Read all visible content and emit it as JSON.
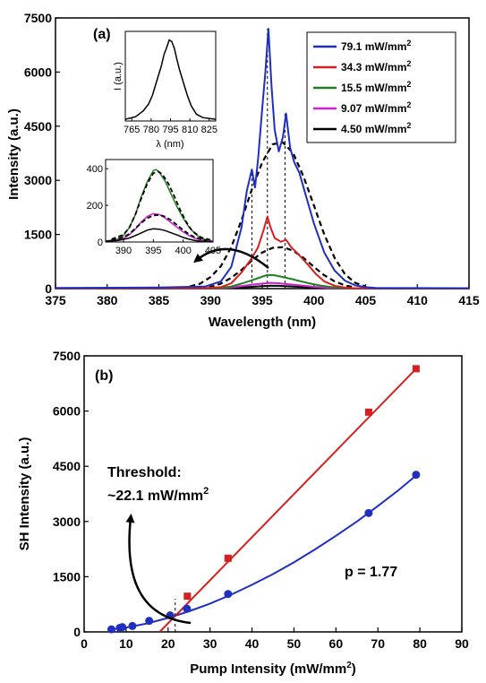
{
  "chart_data": [
    {
      "panel_label": "(a)",
      "type": "line",
      "xlabel": "Wavelength (nm)",
      "ylabel": "Intensity (a.u.)",
      "xlim": [
        375,
        415
      ],
      "ylim": [
        0,
        7500
      ],
      "xticks": [
        375,
        380,
        385,
        390,
        395,
        400,
        405,
        410,
        415
      ],
      "yticks": [
        0,
        1500,
        3000,
        4500,
        6000,
        7500
      ],
      "legend_position": "top-right",
      "legend": [
        {
          "label": "79.1 mW/mm",
          "sup": "2",
          "color": "#1f2fc0"
        },
        {
          "label": "34.3 mW/mm",
          "sup": "2",
          "color": "#d42020"
        },
        {
          "label": "15.5 mW/mm",
          "sup": "2",
          "color": "#208020"
        },
        {
          "label": "9.07 mW/mm",
          "sup": "2",
          "color": "#d020d0"
        },
        {
          "label": "4.50 mW/mm",
          "sup": "2",
          "color": "#000000"
        }
      ],
      "series": [
        {
          "color": "#1f2fc0",
          "x": [
            375,
            385,
            389.5,
            391,
            392,
            393,
            393.5,
            394,
            394.3,
            394.6,
            395,
            395.3,
            395.6,
            395.9,
            396.2,
            396.6,
            397,
            397.3,
            397.7,
            398.1,
            398.6,
            399.2,
            400,
            401,
            402,
            403,
            404,
            405,
            406,
            415
          ],
          "y": [
            20,
            30,
            60,
            200,
            600,
            1700,
            2700,
            3300,
            2800,
            3600,
            5000,
            6000,
            7200,
            5600,
            4400,
            3800,
            4200,
            4850,
            3900,
            3500,
            3200,
            2600,
            1800,
            1000,
            500,
            220,
            90,
            40,
            20,
            10
          ]
        },
        {
          "color": "#d42020",
          "x": [
            375,
            389,
            391,
            392,
            393,
            394,
            394.6,
            395.1,
            395.5,
            395.8,
            396.2,
            396.8,
            397.3,
            397.8,
            398.5,
            399.3,
            400.2,
            401,
            402,
            403,
            404,
            415
          ],
          "y": [
            5,
            10,
            40,
            150,
            450,
            850,
            1150,
            1600,
            2000,
            1700,
            1400,
            1300,
            1350,
            1150,
            950,
            700,
            400,
            200,
            80,
            30,
            10,
            5
          ]
        },
        {
          "color": "#208020",
          "x": [
            375,
            389,
            391,
            392,
            393,
            394,
            394.8,
            395.5,
            396.2,
            397,
            397.8,
            398.6,
            399.5,
            400.5,
            401.5,
            402.5,
            403.5,
            415
          ],
          "y": [
            5,
            5,
            20,
            60,
            140,
            230,
            310,
            380,
            370,
            320,
            270,
            210,
            150,
            90,
            50,
            20,
            10,
            5
          ]
        },
        {
          "color": "#d020d0",
          "x": [
            375,
            389,
            391,
            392,
            393,
            394,
            395,
            395.8,
            396.5,
            397.2,
            398,
            399,
            400,
            401,
            402,
            403,
            415
          ],
          "y": [
            5,
            5,
            10,
            35,
            70,
            110,
            140,
            160,
            150,
            130,
            110,
            80,
            50,
            28,
            12,
            5,
            5
          ]
        },
        {
          "color": "#000000",
          "x": [
            375,
            389,
            391,
            392,
            393,
            394,
            395,
            395.8,
            396.5,
            397.2,
            398,
            399,
            400,
            401,
            402,
            403,
            415
          ],
          "y": [
            5,
            5,
            8,
            18,
            32,
            50,
            70,
            80,
            76,
            68,
            58,
            42,
            28,
            16,
            8,
            4,
            4
          ]
        },
        {
          "style": "dashed",
          "color": "#000000",
          "x": [
            388,
            389,
            390,
            391,
            392,
            393,
            394,
            395,
            396,
            397,
            398,
            399,
            400,
            401,
            402,
            403,
            404,
            405
          ],
          "y": [
            60,
            140,
            320,
            620,
            1150,
            1900,
            2750,
            3500,
            4000,
            4050,
            3750,
            3100,
            2300,
            1500,
            850,
            400,
            160,
            60
          ]
        },
        {
          "style": "dashed",
          "color": "#000000",
          "x": [
            389,
            390,
            391,
            392,
            393,
            394,
            395,
            396,
            397,
            398,
            399,
            400,
            401,
            402,
            403,
            404
          ],
          "y": [
            15,
            50,
            140,
            300,
            520,
            780,
            1000,
            1130,
            1150,
            1050,
            850,
            600,
            370,
            200,
            90,
            30
          ]
        }
      ],
      "guides_x": [
        394.0,
        395.5,
        397.2
      ],
      "inset_top": {
        "xlabel": "λ (nm)",
        "ylabel": "I (a.u.)",
        "xlim": [
          760,
          830
        ],
        "xticks": [
          765,
          780,
          795,
          810,
          825
        ],
        "x": [
          760,
          768,
          774,
          778,
          781,
          784,
          786,
          788,
          790,
          792,
          794,
          796,
          798,
          800,
          802,
          805,
          808,
          811,
          815,
          820,
          830
        ],
        "y": [
          0.02,
          0.05,
          0.12,
          0.2,
          0.3,
          0.45,
          0.55,
          0.65,
          0.78,
          0.86,
          0.95,
          0.93,
          0.85,
          0.72,
          0.6,
          0.45,
          0.3,
          0.18,
          0.08,
          0.04,
          0.02
        ]
      },
      "inset_bottom": {
        "xlim": [
          387,
          405
        ],
        "ylim": [
          0,
          450
        ],
        "xticks": [
          390,
          395,
          400,
          405
        ],
        "yticks": [
          0,
          200,
          400
        ],
        "series": [
          {
            "color": "#208020",
            "x": [
              387,
              389,
              390,
              391,
              392,
              393,
              394,
              395,
              395.5,
              396,
              397,
              398,
              399,
              400,
              401,
              402,
              403,
              404,
              405
            ],
            "y": [
              5,
              15,
              35,
              80,
              150,
              250,
              330,
              390,
              395,
              380,
              330,
              260,
              190,
              130,
              80,
              45,
              20,
              10,
              5
            ]
          },
          {
            "color": "#d020d0",
            "x": [
              387,
              389,
              390,
              391,
              392,
              393,
              394,
              395,
              396,
              397,
              398,
              399,
              400,
              401,
              402,
              403,
              405
            ],
            "y": [
              5,
              10,
              20,
              40,
              70,
              110,
              140,
              155,
              150,
              130,
              105,
              80,
              55,
              35,
              20,
              10,
              5
            ]
          },
          {
            "color": "#000000",
            "x": [
              387,
              389,
              390,
              391,
              392,
              393,
              394,
              395,
              396,
              397,
              398,
              399,
              400,
              401,
              402,
              403,
              405
            ],
            "y": [
              5,
              8,
              14,
              22,
              35,
              50,
              65,
              72,
              70,
              62,
              50,
              38,
              25,
              15,
              8,
              4,
              2
            ]
          },
          {
            "style": "dashed",
            "color": "#000000",
            "x": [
              388,
              390,
              391,
              392,
              393,
              394,
              395,
              395.8,
              396.5,
              397.5,
              398.5,
              399.5,
              400.5,
              401.5,
              403,
              405
            ],
            "y": [
              15,
              40,
              80,
              150,
              240,
              320,
              375,
              385,
              370,
              320,
              250,
              175,
              110,
              60,
              25,
              8
            ]
          },
          {
            "style": "dashed",
            "color": "#000000",
            "x": [
              388,
              390,
              391,
              392,
              393,
              394,
              395,
              396,
              397,
              398,
              399,
              400,
              401,
              402,
              404
            ],
            "y": [
              10,
              25,
              45,
              75,
              105,
              130,
              145,
              148,
              138,
              118,
              92,
              65,
              42,
              25,
              8
            ]
          }
        ]
      }
    },
    {
      "panel_label": "(b)",
      "type": "scatter",
      "xlabel": "Pump Intensity (mW/mm",
      "xlabel_sup": "2",
      "xlabel_end": ")",
      "ylabel": "SH Intensity (a.u.)",
      "xlim": [
        0,
        90
      ],
      "ylim": [
        0,
        7500
      ],
      "xticks": [
        0,
        10,
        20,
        30,
        40,
        50,
        60,
        70,
        80,
        90
      ],
      "yticks": [
        0,
        1500,
        3000,
        4500,
        6000,
        7500
      ],
      "series": [
        {
          "marker": "circle",
          "color": "#1f2fc0",
          "x": [
            6.5,
            8.5,
            9.1,
            11.5,
            15.5,
            20.5,
            24.5,
            34.3,
            67.8,
            79.1
          ],
          "y": [
            70,
            110,
            130,
            160,
            300,
            450,
            630,
            1030,
            3230,
            4270
          ]
        },
        {
          "marker": "square",
          "color": "#d42020",
          "x": [
            24.6,
            34.3,
            67.8,
            79.1
          ],
          "y": [
            970,
            2000,
            5970,
            7150
          ]
        }
      ],
      "fit_blue": {
        "color": "#1f2fc0",
        "x": [
          6,
          10,
          15,
          20,
          25,
          30,
          35,
          40,
          45,
          50,
          55,
          60,
          65,
          70,
          75,
          79.1
        ],
        "y": [
          60,
          120,
          230,
          380,
          560,
          770,
          1010,
          1280,
          1570,
          1890,
          2240,
          2610,
          3000,
          3420,
          3860,
          4250
        ]
      },
      "fit_red": {
        "color": "#d42020",
        "x": [
          18,
          79.1
        ],
        "y": [
          0,
          7150
        ]
      },
      "threshold_x": 21.7,
      "annotation_threshold_line1": "Threshold:",
      "annotation_threshold_line2": "~22.1 mW/mm",
      "annotation_threshold_sup": "2",
      "annotation_p": "p = 1.77"
    }
  ]
}
